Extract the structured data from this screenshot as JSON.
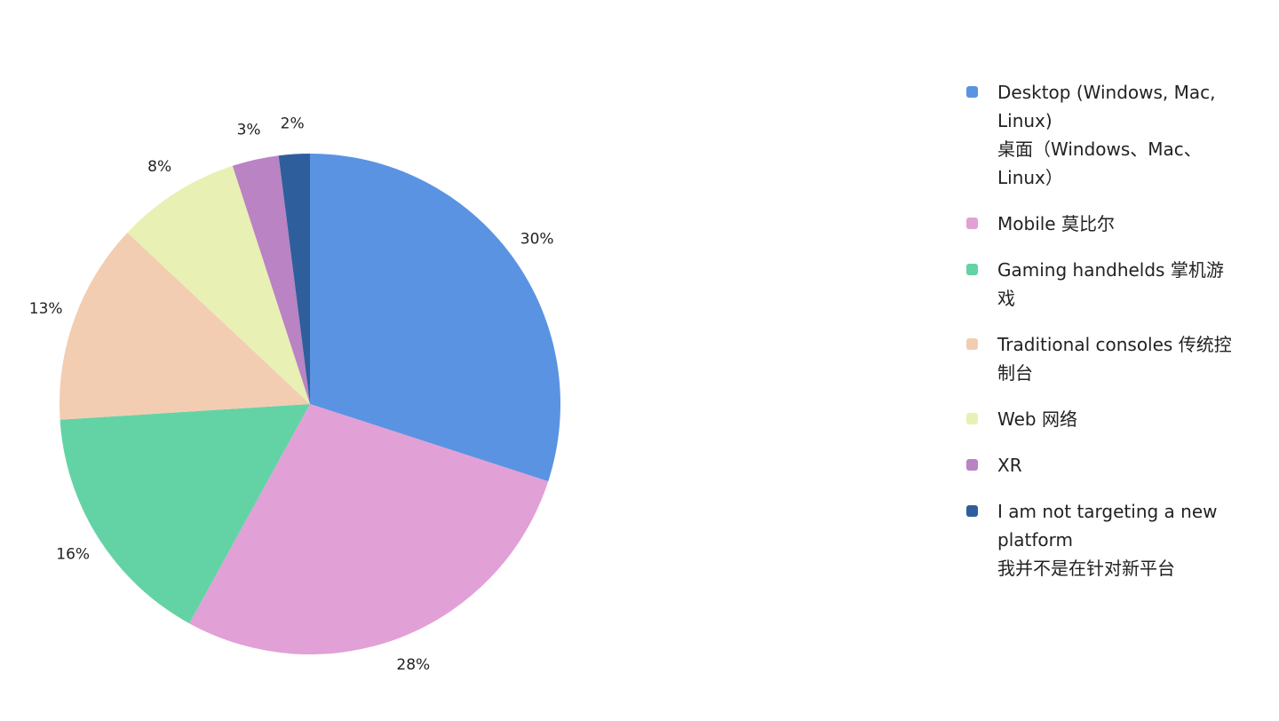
{
  "chart_data": {
    "type": "pie",
    "categories": [
      "Desktop (Windows, Mac, Linux)\n桌面（Windows、Mac、Linux）",
      "Mobile 莫比尔",
      "Gaming handhelds 掌机游戏",
      "Traditional consoles 传统控制台",
      "Web 网络",
      "XR",
      "I am not targeting a new platform\n我并不是在针对新平台"
    ],
    "values": [
      30,
      28,
      16,
      13,
      8,
      3,
      2
    ],
    "value_labels": [
      "30%",
      "28%",
      "16%",
      "13%",
      "8%",
      "3%",
      "2%"
    ],
    "colors": [
      "#5b93e3",
      "#e1a0d6",
      "#63d3a5",
      "#f2cdb2",
      "#e8f0b3",
      "#b983c4",
      "#2e5f9c"
    ]
  }
}
